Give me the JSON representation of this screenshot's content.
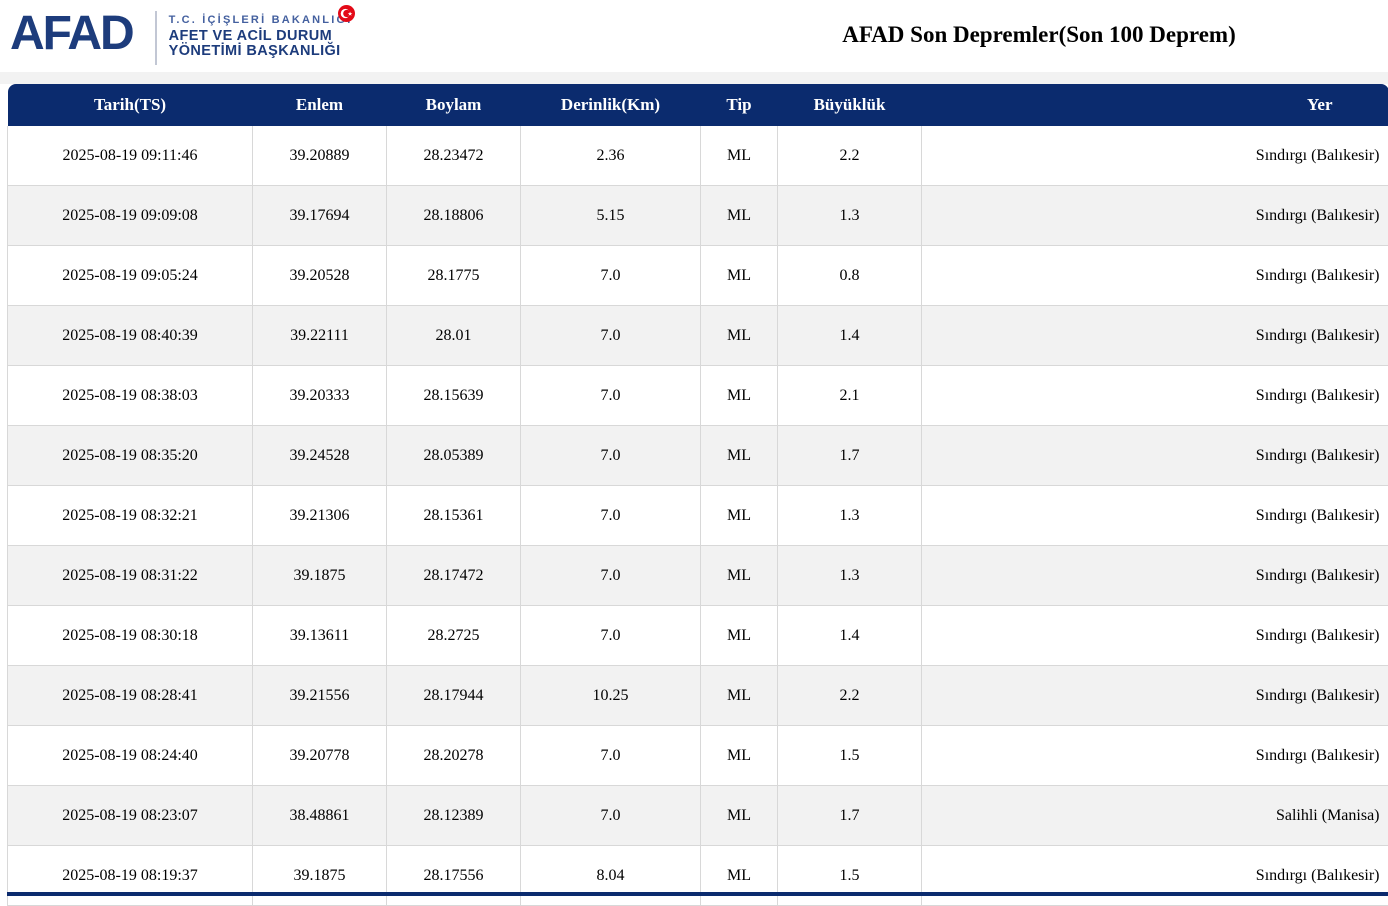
{
  "brand": {
    "logo_text": "AFAD",
    "flag_icon": "turkish-flag-crescent-star-icon",
    "ministry_line1": "T.C.  İÇİŞLERİ  BAKANLIĞI",
    "ministry_line2": "AFET VE ACİL DURUM",
    "ministry_line3": "YÖNETİMİ BAŞKANLIĞI",
    "colors": {
      "logo_navy": "#1d3c7c",
      "flag_red": "#e30a17"
    }
  },
  "page": {
    "title": "AFAD Son Depremler(Son 100 Deprem)"
  },
  "table": {
    "header_bg": "#0b2b6e",
    "alt_row_bg": "#f2f2f2",
    "columns": [
      "Tarih(TS)",
      "Enlem",
      "Boylam",
      "Derinlik(Km)",
      "Tip",
      "Büyüklük",
      "Yer"
    ],
    "column_keys": [
      "tarih",
      "enlem",
      "boylam",
      "derinlik",
      "tip",
      "buyukluk",
      "yer"
    ],
    "rows": [
      [
        "2025-08-19 09:11:46",
        "39.20889",
        "28.23472",
        "2.36",
        "ML",
        "2.2",
        "Sındırgı (Balıkesir)"
      ],
      [
        "2025-08-19 09:09:08",
        "39.17694",
        "28.18806",
        "5.15",
        "ML",
        "1.3",
        "Sındırgı (Balıkesir)"
      ],
      [
        "2025-08-19 09:05:24",
        "39.20528",
        "28.1775",
        "7.0",
        "ML",
        "0.8",
        "Sındırgı (Balıkesir)"
      ],
      [
        "2025-08-19 08:40:39",
        "39.22111",
        "28.01",
        "7.0",
        "ML",
        "1.4",
        "Sındırgı (Balıkesir)"
      ],
      [
        "2025-08-19 08:38:03",
        "39.20333",
        "28.15639",
        "7.0",
        "ML",
        "2.1",
        "Sındırgı (Balıkesir)"
      ],
      [
        "2025-08-19 08:35:20",
        "39.24528",
        "28.05389",
        "7.0",
        "ML",
        "1.7",
        "Sındırgı (Balıkesir)"
      ],
      [
        "2025-08-19 08:32:21",
        "39.21306",
        "28.15361",
        "7.0",
        "ML",
        "1.3",
        "Sındırgı (Balıkesir)"
      ],
      [
        "2025-08-19 08:31:22",
        "39.1875",
        "28.17472",
        "7.0",
        "ML",
        "1.3",
        "Sındırgı (Balıkesir)"
      ],
      [
        "2025-08-19 08:30:18",
        "39.13611",
        "28.2725",
        "7.0",
        "ML",
        "1.4",
        "Sındırgı (Balıkesir)"
      ],
      [
        "2025-08-19 08:28:41",
        "39.21556",
        "28.17944",
        "10.25",
        "ML",
        "2.2",
        "Sındırgı (Balıkesir)"
      ],
      [
        "2025-08-19 08:24:40",
        "39.20778",
        "28.20278",
        "7.0",
        "ML",
        "1.5",
        "Sındırgı (Balıkesir)"
      ],
      [
        "2025-08-19 08:23:07",
        "38.48861",
        "28.12389",
        "7.0",
        "ML",
        "1.7",
        "Salihli (Manisa)"
      ],
      [
        "2025-08-19 08:19:37",
        "39.1875",
        "28.17556",
        "8.04",
        "ML",
        "1.5",
        "Sındırgı (Balıkesir)"
      ]
    ]
  }
}
